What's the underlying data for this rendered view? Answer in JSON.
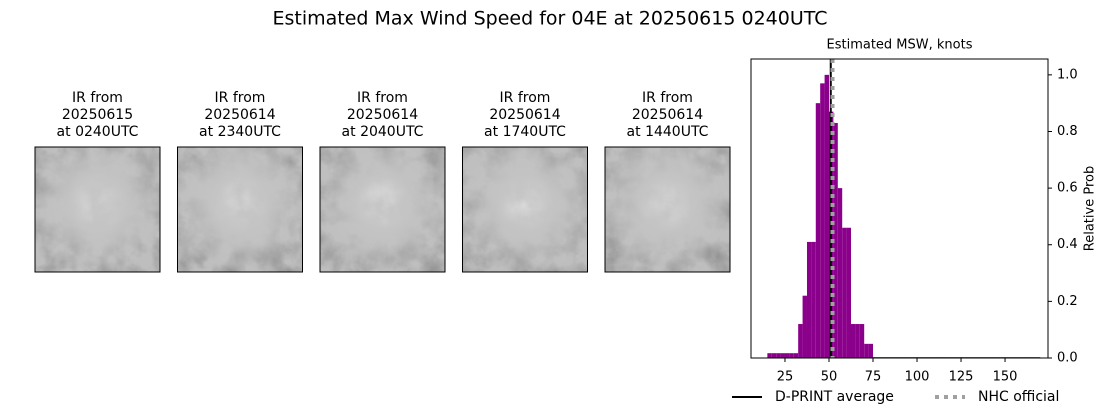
{
  "suptitle": "Estimated Max Wind Speed for 04E at 20250615 0240UTC",
  "panels": [
    {
      "lines": [
        "IR from",
        "20250615",
        "at 0240UTC"
      ]
    },
    {
      "lines": [
        "IR from",
        "20250614",
        "at 2340UTC"
      ]
    },
    {
      "lines": [
        "IR from",
        "20250614",
        "at 2040UTC"
      ]
    },
    {
      "lines": [
        "IR from",
        "20250614",
        "at 1740UTC"
      ]
    },
    {
      "lines": [
        "IR from",
        "20250614",
        "at 1440UTC"
      ]
    }
  ],
  "chart_data": {
    "type": "histogram",
    "title": "Estimated MSW, knots",
    "y_label": "Relative Prob",
    "color": "#8b008b",
    "bins": [
      15,
      17.5,
      20,
      22.5,
      25,
      27.5,
      30,
      32.5,
      35,
      37.5,
      40,
      42.5,
      45,
      47.5,
      50,
      52.5,
      55,
      57.5,
      60,
      62.5,
      65,
      67.5,
      70,
      72.5,
      75,
      77.5,
      80,
      82.5,
      85,
      87.5,
      90,
      92.5,
      95,
      97.5,
      100,
      102.5,
      105,
      107.5,
      110,
      112.5,
      115,
      117.5,
      120,
      122.5,
      125,
      127.5,
      130,
      132.5,
      135,
      137.5,
      140,
      142.5,
      145,
      147.5,
      150,
      152.5,
      155,
      157.5,
      160,
      162.5,
      165,
      167.5,
      170
    ],
    "counts": [
      0.017,
      0.017,
      0.017,
      0.017,
      0.017,
      0.017,
      0.017,
      0.12,
      0.22,
      0.41,
      0.41,
      0.9,
      0.97,
      1.0,
      0.87,
      0.83,
      0.6,
      0.46,
      0.46,
      0.12,
      0.12,
      0.12,
      0.05,
      0.05,
      0.003,
      0.003,
      0.003,
      0.003,
      0.003,
      0.003,
      0.003,
      0.003,
      0.003,
      0.003,
      0.003,
      0.003,
      0.003,
      0.003,
      0.003,
      0.003,
      0.003,
      0.003,
      0.003,
      0.003,
      0.003,
      0.003,
      0.003,
      0.003,
      0.003,
      0.003,
      0.003,
      0.003,
      0.003,
      0.003,
      0.003,
      0.003,
      0.003,
      0.003,
      0.003,
      0.003,
      0.003,
      0.003
    ],
    "xlim": [
      5.7,
      174.4
    ],
    "ylim": [
      0,
      1.056
    ],
    "xticks": [
      25,
      50,
      75,
      100,
      125,
      150
    ],
    "yticks": [
      {
        "value": 0,
        "label": "0.0"
      },
      {
        "value": 0.2,
        "label": "0.2"
      },
      {
        "value": 0.4,
        "label": "0.4"
      },
      {
        "value": 0.6,
        "label": "0.6"
      },
      {
        "value": 0.8,
        "label": "0.8"
      },
      {
        "value": 1,
        "label": "1.0"
      }
    ],
    "lines": [
      {
        "name": "D-PRINT average",
        "x": 51,
        "color": "#000000",
        "dashed": false
      },
      {
        "name": "NHC official",
        "x": 52,
        "color": "#a0a0a0",
        "dashed": true
      }
    ]
  }
}
